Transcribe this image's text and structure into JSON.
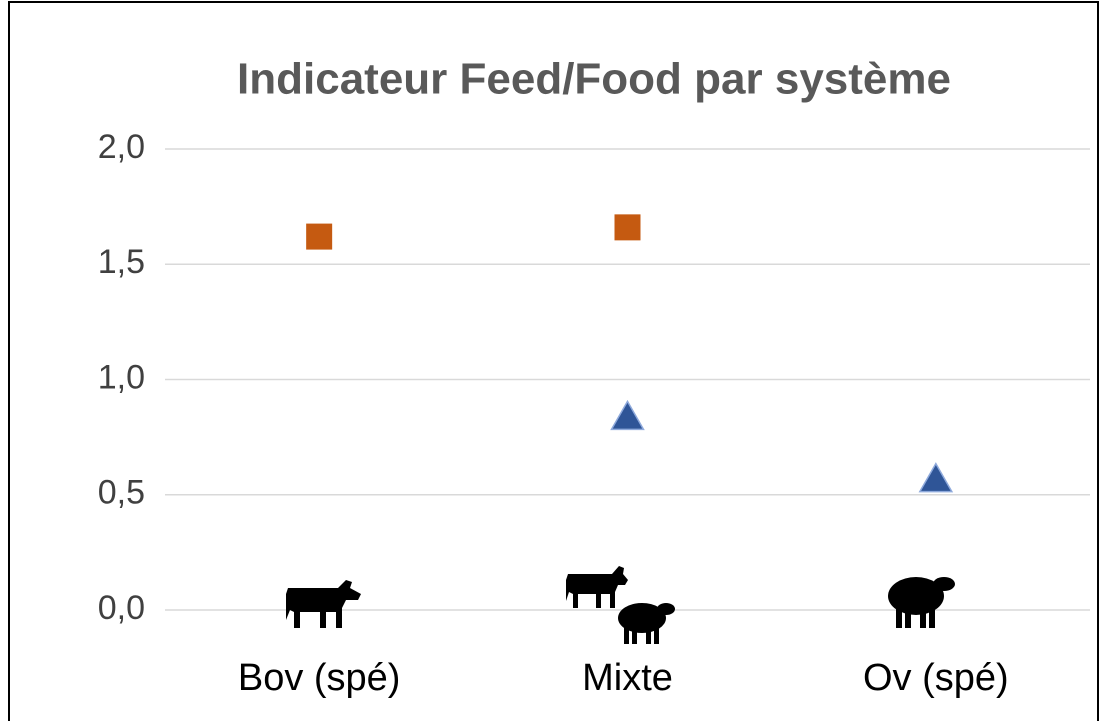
{
  "chart_data": {
    "type": "scatter",
    "title": "Indicateur Feed/Food par système",
    "categories": [
      "Bov (spé)",
      "Mixte",
      "Ov (spé)"
    ],
    "series": [
      {
        "color": "#c55a11",
        "marker": "square",
        "values": [
          1.62,
          1.66,
          null
        ]
      },
      {
        "color": "#2f5597",
        "marker": "triangle",
        "values": [
          null,
          0.84,
          0.57
        ]
      }
    ],
    "ylim": [
      0,
      2
    ],
    "yticks": [
      {
        "value": 0,
        "label": "0,0"
      },
      {
        "value": 0.5,
        "label": "0,5"
      },
      {
        "value": 1,
        "label": "1,0"
      },
      {
        "value": 1.5,
        "label": "1,5"
      },
      {
        "value": 2,
        "label": "2,0"
      }
    ],
    "grid": true
  }
}
